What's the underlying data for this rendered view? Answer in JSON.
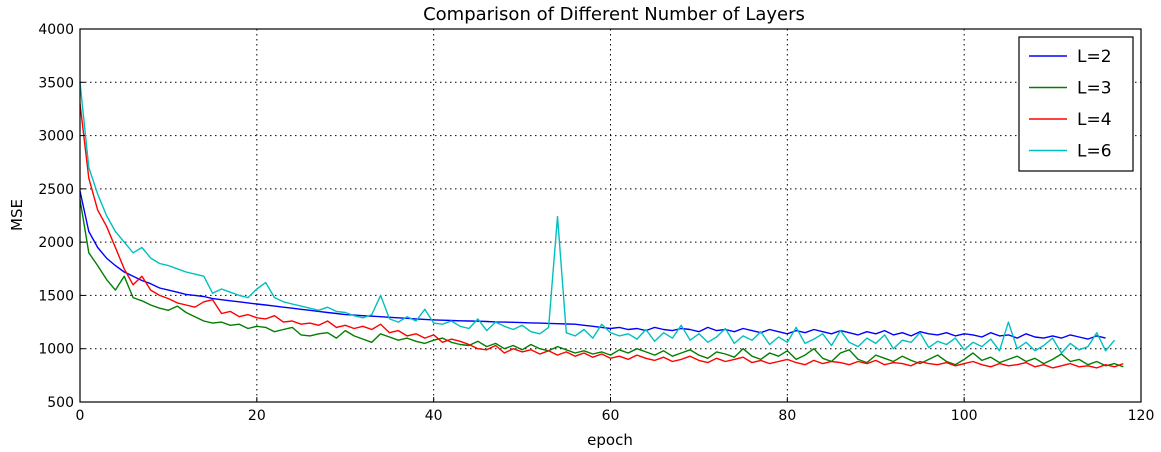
{
  "chart_data": {
    "type": "line",
    "title": "Comparison of Different Number of Layers",
    "xlabel": "epoch",
    "ylabel": "MSE",
    "xlim": [
      0,
      120
    ],
    "ylim": [
      500,
      4000
    ],
    "xticks": [
      0,
      20,
      40,
      60,
      80,
      100,
      120
    ],
    "yticks": [
      500,
      1000,
      1500,
      2000,
      2500,
      3000,
      3500,
      4000
    ],
    "grid": true,
    "legend": "top-right",
    "series": [
      {
        "name": "L=2",
        "color": "#0000ff",
        "values": [
          2480,
          2100,
          1950,
          1850,
          1780,
          1720,
          1680,
          1640,
          1610,
          1570,
          1550,
          1530,
          1510,
          1500,
          1490,
          1470,
          1460,
          1450,
          1440,
          1430,
          1420,
          1410,
          1400,
          1390,
          1380,
          1370,
          1360,
          1350,
          1340,
          1330,
          1320,
          1315,
          1310,
          1305,
          1300,
          1295,
          1290,
          1285,
          1280,
          1275,
          1270,
          1268,
          1265,
          1262,
          1260,
          1258,
          1255,
          1252,
          1250,
          1248,
          1245,
          1242,
          1240,
          1238,
          1235,
          1232,
          1230,
          1220,
          1210,
          1200,
          1190,
          1200,
          1180,
          1190,
          1170,
          1200,
          1180,
          1170,
          1190,
          1180,
          1160,
          1200,
          1170,
          1180,
          1160,
          1190,
          1170,
          1150,
          1180,
          1160,
          1140,
          1170,
          1150,
          1180,
          1160,
          1140,
          1170,
          1150,
          1130,
          1160,
          1140,
          1170,
          1130,
          1150,
          1120,
          1160,
          1140,
          1130,
          1150,
          1120,
          1140,
          1130,
          1110,
          1150,
          1120,
          1130,
          1100,
          1140,
          1110,
          1100,
          1120,
          1100,
          1130,
          1110,
          1090,
          1120,
          1100
        ]
      },
      {
        "name": "L=3",
        "color": "#007f00",
        "values": [
          2400,
          1900,
          1780,
          1650,
          1550,
          1680,
          1480,
          1450,
          1410,
          1380,
          1360,
          1400,
          1340,
          1300,
          1260,
          1240,
          1250,
          1220,
          1230,
          1190,
          1210,
          1200,
          1160,
          1180,
          1200,
          1130,
          1120,
          1140,
          1150,
          1100,
          1170,
          1120,
          1090,
          1060,
          1140,
          1110,
          1080,
          1100,
          1070,
          1050,
          1080,
          1100,
          1060,
          1040,
          1030,
          1070,
          1020,
          1050,
          1000,
          1030,
          990,
          1040,
          1000,
          980,
          1020,
          990,
          960,
          980,
          950,
          970,
          940,
          990,
          960,
          1000,
          970,
          940,
          980,
          930,
          960,
          990,
          940,
          910,
          970,
          950,
          920,
          1000,
          930,
          900,
          960,
          930,
          980,
          900,
          940,
          1000,
          910,
          880,
          960,
          990,
          900,
          870,
          940,
          910,
          880,
          930,
          890,
          860,
          900,
          940,
          880,
          850,
          900,
          960,
          890,
          920,
          870,
          900,
          930,
          880,
          910,
          860,
          900,
          950,
          880,
          900,
          850,
          880,
          840,
          860,
          830
        ]
      },
      {
        "name": "L=4",
        "color": "#ff0000",
        "values": [
          3300,
          2600,
          2300,
          2150,
          1950,
          1750,
          1600,
          1680,
          1550,
          1500,
          1470,
          1430,
          1410,
          1390,
          1440,
          1460,
          1330,
          1350,
          1300,
          1320,
          1290,
          1280,
          1310,
          1250,
          1260,
          1230,
          1240,
          1220,
          1260,
          1200,
          1220,
          1190,
          1210,
          1180,
          1230,
          1150,
          1170,
          1120,
          1140,
          1100,
          1130,
          1060,
          1090,
          1070,
          1040,
          1000,
          990,
          1030,
          960,
          1000,
          970,
          990,
          950,
          980,
          940,
          970,
          930,
          960,
          920,
          950,
          910,
          930,
          900,
          940,
          910,
          890,
          920,
          880,
          900,
          930,
          890,
          870,
          910,
          880,
          900,
          920,
          870,
          890,
          860,
          880,
          900,
          870,
          850,
          890,
          860,
          880,
          870,
          850,
          880,
          860,
          890,
          850,
          870,
          860,
          840,
          880,
          860,
          850,
          870,
          840,
          860,
          880,
          850,
          830,
          860,
          840,
          850,
          870,
          830,
          850,
          820,
          840,
          860,
          830,
          840,
          820,
          850,
          830,
          860
        ]
      },
      {
        "name": "L=6",
        "color": "#00bfbf",
        "values": [
          3500,
          2700,
          2450,
          2250,
          2100,
          2000,
          1900,
          1950,
          1850,
          1800,
          1780,
          1750,
          1720,
          1700,
          1680,
          1520,
          1560,
          1530,
          1500,
          1480,
          1560,
          1620,
          1480,
          1440,
          1420,
          1400,
          1380,
          1360,
          1390,
          1350,
          1340,
          1310,
          1290,
          1320,
          1500,
          1280,
          1250,
          1300,
          1260,
          1370,
          1240,
          1230,
          1260,
          1210,
          1190,
          1280,
          1170,
          1250,
          1210,
          1180,
          1220,
          1160,
          1140,
          1200,
          2240,
          1150,
          1120,
          1180,
          1100,
          1230,
          1150,
          1120,
          1140,
          1090,
          1180,
          1070,
          1150,
          1100,
          1220,
          1080,
          1140,
          1060,
          1110,
          1190,
          1050,
          1120,
          1080,
          1160,
          1040,
          1110,
          1060,
          1200,
          1050,
          1090,
          1140,
          1030,
          1170,
          1060,
          1020,
          1100,
          1050,
          1130,
          1000,
          1080,
          1060,
          1150,
          1010,
          1070,
          1040,
          1100,
          990,
          1060,
          1020,
          1090,
          980,
          1250,
          1000,
          1060,
          980,
          1030,
          1100,
          960,
          1050,
          990,
          1020,
          1150,
          980,
          1080
        ]
      }
    ]
  }
}
